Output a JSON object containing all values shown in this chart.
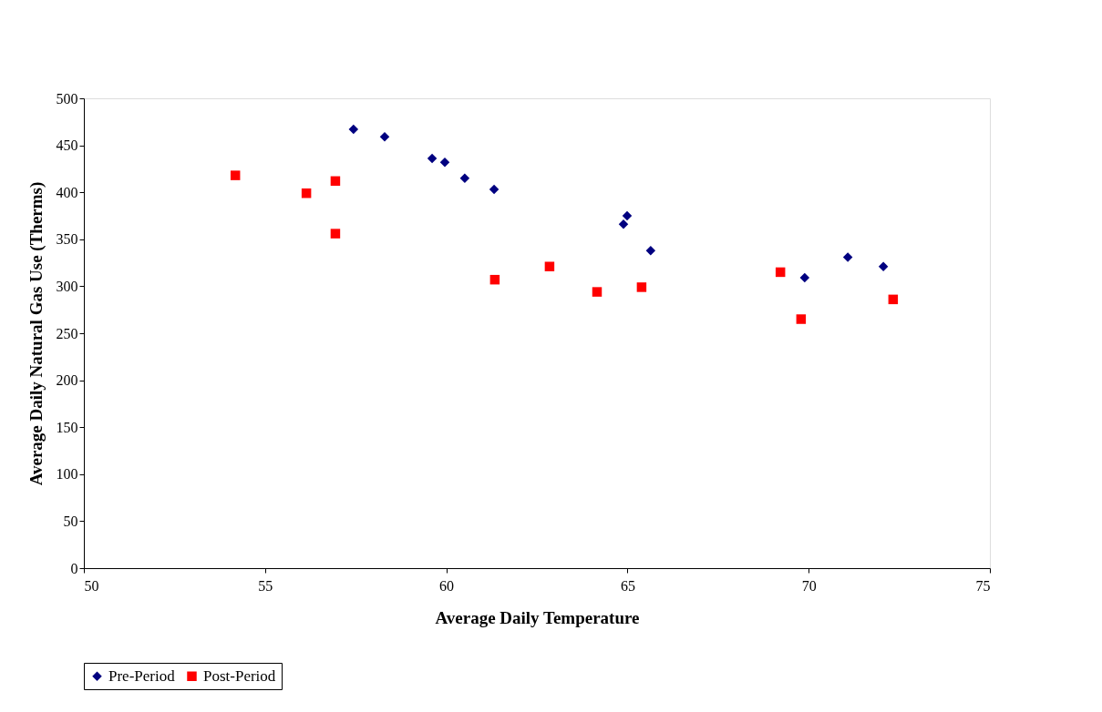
{
  "chart_data": {
    "type": "scatter",
    "xlabel": "Average Daily Temperature",
    "ylabel": "Average Daily Natural Gas Use (Therms)",
    "xlim": [
      50,
      75
    ],
    "xticks": [
      50,
      55,
      60,
      65,
      70,
      75
    ],
    "ylim": [
      0,
      500
    ],
    "yticks": [
      0,
      50,
      100,
      150,
      200,
      250,
      300,
      350,
      400,
      450,
      500
    ],
    "grid": false,
    "legend": "bottom",
    "series": [
      {
        "name": "Pre-Period",
        "color": "#000080",
        "marker": "diamond",
        "x": [
          57.44,
          58.3,
          59.61,
          59.96,
          60.51,
          61.32,
          64.89,
          64.99,
          65.64,
          69.89,
          71.08,
          72.06
        ],
        "values": [
          467,
          459,
          436,
          432,
          415,
          403,
          366,
          375,
          338,
          309,
          331,
          321
        ]
      },
      {
        "name": "Post-Period",
        "color": "#ff0000",
        "marker": "square",
        "x": [
          54.18,
          56.14,
          56.94,
          56.94,
          61.34,
          62.85,
          64.16,
          65.39,
          69.22,
          69.79,
          72.33
        ],
        "values": [
          418,
          399,
          412,
          356,
          307,
          321,
          294,
          299,
          315,
          265,
          286
        ]
      }
    ]
  }
}
